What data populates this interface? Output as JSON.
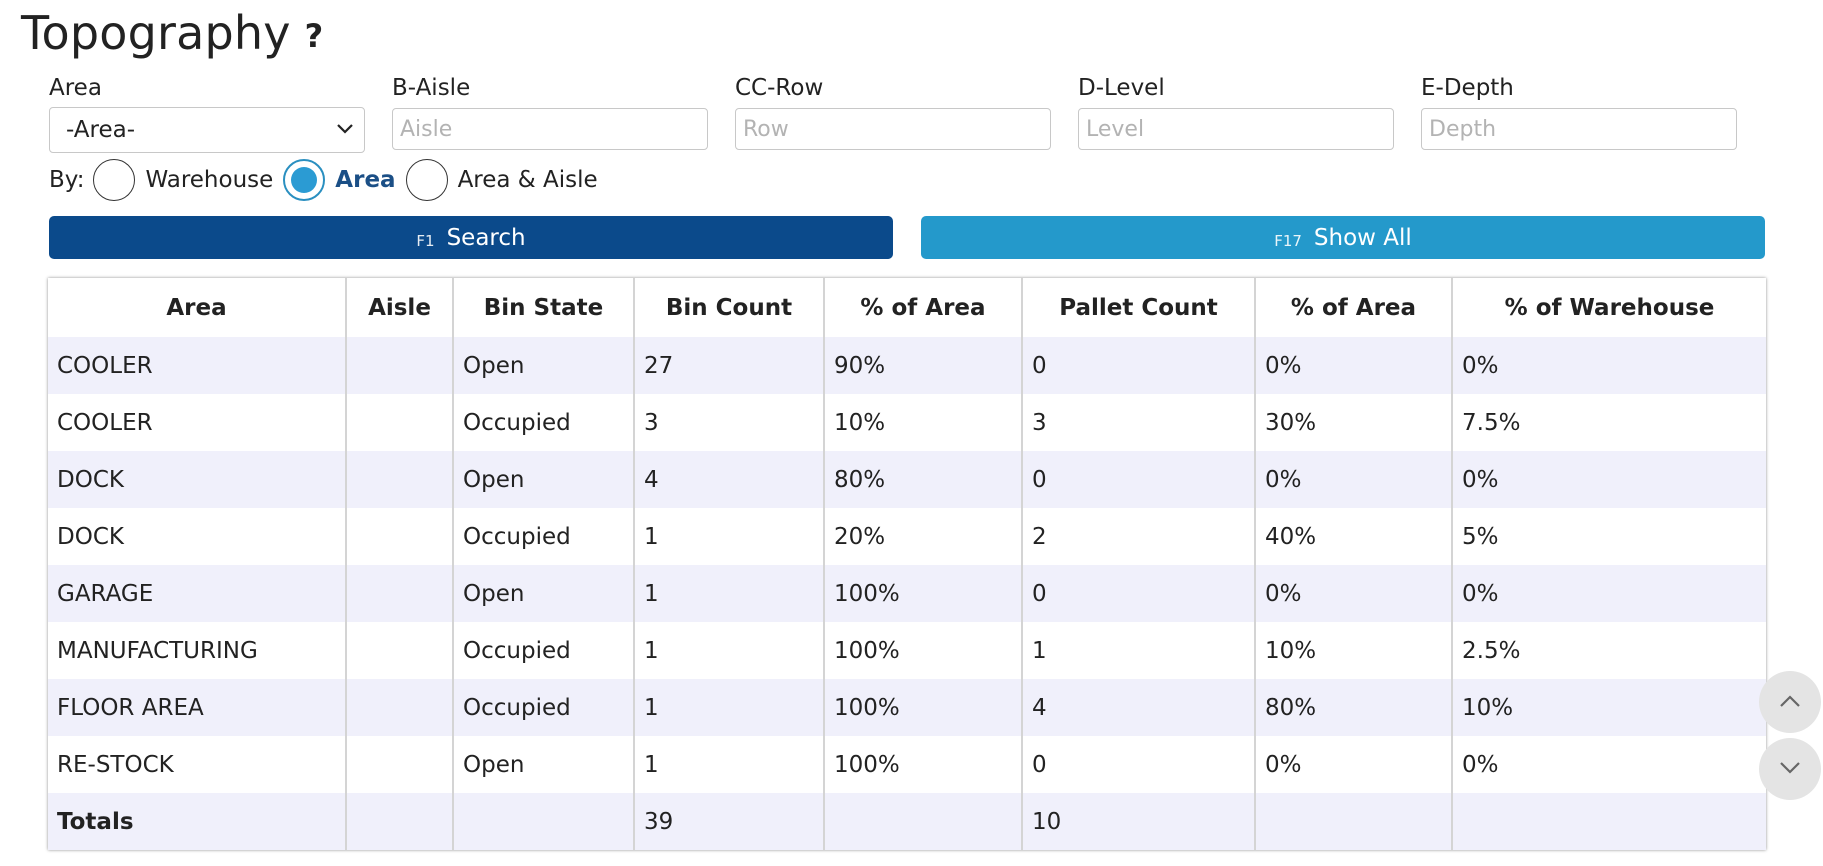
{
  "page": {
    "title": "Topography",
    "help_icon": "?"
  },
  "filters": {
    "area": {
      "label": "Area",
      "value": "-Area-"
    },
    "aisle": {
      "label": "B-Aisle",
      "placeholder": "Aisle"
    },
    "row": {
      "label": "CC-Row",
      "placeholder": "Row"
    },
    "level": {
      "label": "D-Level",
      "placeholder": "Level"
    },
    "depth": {
      "label": "E-Depth",
      "placeholder": "Depth"
    }
  },
  "group_by": {
    "label": "By:",
    "options": [
      "Warehouse",
      "Area",
      "Area & Aisle"
    ],
    "selected": "Area"
  },
  "actions": {
    "search": {
      "key": "F1",
      "label": "Search"
    },
    "show_all": {
      "key": "F17",
      "label": "Show All"
    }
  },
  "table": {
    "headers": [
      "Area",
      "Aisle",
      "Bin State",
      "Bin Count",
      "% of Area",
      "Pallet Count",
      "% of Area",
      "% of Warehouse"
    ],
    "rows": [
      [
        "COOLER",
        "",
        "Open",
        "27",
        "90%",
        "0",
        "0%",
        "0%"
      ],
      [
        "COOLER",
        "",
        "Occupied",
        "3",
        "10%",
        "3",
        "30%",
        "7.5%"
      ],
      [
        "DOCK",
        "",
        "Open",
        "4",
        "80%",
        "0",
        "0%",
        "0%"
      ],
      [
        "DOCK",
        "",
        "Occupied",
        "1",
        "20%",
        "2",
        "40%",
        "5%"
      ],
      [
        "GARAGE",
        "",
        "Open",
        "1",
        "100%",
        "0",
        "0%",
        "0%"
      ],
      [
        "MANUFACTURING",
        "",
        "Occupied",
        "1",
        "100%",
        "1",
        "10%",
        "2.5%"
      ],
      [
        "FLOOR AREA",
        "",
        "Occupied",
        "1",
        "100%",
        "4",
        "80%",
        "10%"
      ],
      [
        "RE-STOCK",
        "",
        "Open",
        "1",
        "100%",
        "0",
        "0%",
        "0%"
      ]
    ],
    "totals": [
      "Totals",
      "",
      "",
      "39",
      "",
      "10",
      "",
      ""
    ]
  },
  "colors": {
    "search_button": "#0b4a8b",
    "show_all_button": "#2499cb",
    "row_stripe": "#f0f0fb",
    "radio_selected": "#2b9bd3"
  }
}
